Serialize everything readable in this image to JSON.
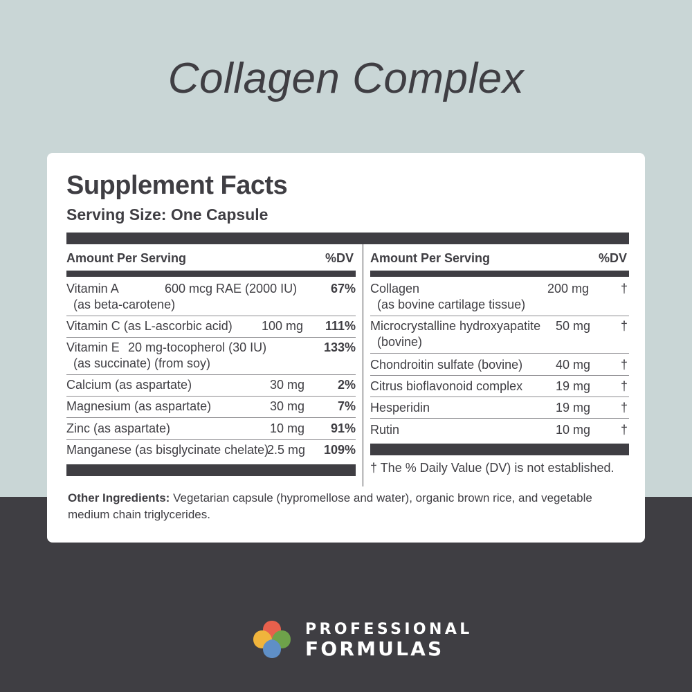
{
  "product_title": "Collagen Complex",
  "facts": {
    "title": "Supplement Facts",
    "serving_size": "Serving Size: One Capsule",
    "left_header": {
      "amount": "Amount Per Serving",
      "dv": "%DV"
    },
    "right_header": {
      "amount": "Amount Per Serving",
      "dv": "%DV"
    },
    "left_rows": [
      {
        "name": "Vitamin A",
        "sub": "(as beta-carotene)",
        "amount": "600 mcg RAE (2000 IU)",
        "dv": "67%"
      },
      {
        "name": "Vitamin C (as L-ascorbic acid)",
        "sub": "",
        "amount": "100 mg",
        "dv": "111%"
      },
      {
        "name": "Vitamin E",
        "sub": "(as succinate) (from soy)",
        "amount": "20 mg-tocopherol (30 IU)",
        "dv": "133%"
      },
      {
        "name": "Calcium (as aspartate)",
        "sub": "",
        "amount": "30 mg",
        "dv": "2%"
      },
      {
        "name": "Magnesium (as aspartate)",
        "sub": "",
        "amount": "30 mg",
        "dv": "7%"
      },
      {
        "name": "Zinc (as aspartate)",
        "sub": "",
        "amount": "10 mg",
        "dv": "91%"
      },
      {
        "name": "Manganese (as bisglycinate chelate)",
        "sub": "",
        "amount": "2.5 mg",
        "dv": "109%"
      }
    ],
    "right_rows": [
      {
        "name": "Collagen",
        "sub": "(as bovine cartilage tissue)",
        "amount": "200 mg",
        "dv": "†"
      },
      {
        "name": "Microcrystalline hydroxyapatite",
        "sub": "(bovine)",
        "amount": "50 mg",
        "dv": "†"
      },
      {
        "name": "Chondroitin sulfate (bovine)",
        "sub": "",
        "amount": "40 mg",
        "dv": "†"
      },
      {
        "name": "Citrus bioflavonoid complex",
        "sub": "",
        "amount": "19 mg",
        "dv": "†"
      },
      {
        "name": "Hesperidin",
        "sub": "",
        "amount": "19 mg",
        "dv": "†"
      },
      {
        "name": "Rutin",
        "sub": "",
        "amount": "10 mg",
        "dv": "†"
      }
    ],
    "footnote": "† The % Daily Value (DV) is not established.",
    "other_label": "Other Ingredients:",
    "other_text": " Vegetarian capsule (hypromellose and water), organic brown rice, and vegetable medium chain triglycerides."
  },
  "brand": {
    "line1": "PROFESSIONAL",
    "line2": "FORMULAS",
    "logo_colors": [
      "#e8604c",
      "#f0b43c",
      "#6ea24a",
      "#5f8fc7"
    ]
  },
  "colors": {
    "background_top": "#c9d6d6",
    "background_bottom": "#3f3e43",
    "text_dark": "#3f3e43"
  }
}
